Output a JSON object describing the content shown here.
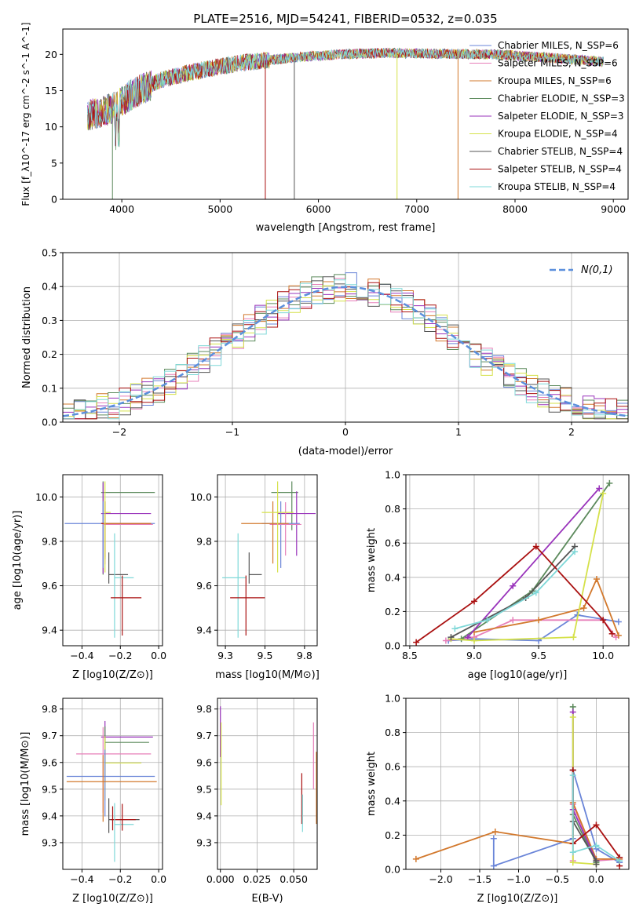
{
  "figure": {
    "title": "PLATE=2516, MJD=54241, FIBERID=0532, z=0.035",
    "series_colors": [
      "#6a85d8",
      "#e77fb9",
      "#d2782c",
      "#5c8a5c",
      "#9933bb",
      "#d5e14a",
      "#555555",
      "#aa1111",
      "#7fd8d8"
    ]
  },
  "chart_data": [
    {
      "id": "spectrum",
      "type": "line",
      "xlabel": "wavelength [Angstrom, rest frame]",
      "ylabel": "Flux [f_λ10^-17 erg cm^-2 s^-1 A^-1]",
      "xlim": [
        3400,
        9150
      ],
      "ylim": [
        0,
        23.5
      ],
      "xticks": [
        4000,
        5000,
        6000,
        7000,
        8000,
        9000
      ],
      "yticks": [
        0,
        5,
        10,
        15,
        20
      ],
      "grid": false,
      "legend_position": "top-right",
      "x_range_of_data": [
        3650,
        8900
      ],
      "continuum": [
        [
          3650,
          11.5
        ],
        [
          3900,
          12.5
        ],
        [
          4100,
          14.5
        ],
        [
          4400,
          16.5
        ],
        [
          4800,
          17.8
        ],
        [
          5200,
          18.8
        ],
        [
          5700,
          19.5
        ],
        [
          6200,
          20.0
        ],
        [
          6700,
          20.2
        ],
        [
          7200,
          20.1
        ],
        [
          7800,
          20.0
        ],
        [
          8300,
          19.6
        ],
        [
          8900,
          19.0
        ]
      ],
      "series": [
        {
          "name": "Chabrier MILES, N_SSP=6"
        },
        {
          "name": "Salpeter MILES, N_SSP=6"
        },
        {
          "name": "Kroupa MILES, N_SSP=6"
        },
        {
          "name": "Chabrier ELODIE, N_SSP=3"
        },
        {
          "name": "Salpeter ELODIE, N_SSP=3"
        },
        {
          "name": "Kroupa ELODIE, N_SSP=4"
        },
        {
          "name": "Chabrier STELIB, N_SSP=4"
        },
        {
          "name": "Salpeter STELIB, N_SSP=4"
        },
        {
          "name": "Kroupa STELIB, N_SSP=4"
        }
      ]
    },
    {
      "id": "residuals",
      "type": "step",
      "xlabel": "(data-model)/error",
      "ylabel": "Normed distribution",
      "xlim": [
        -2.5,
        2.5
      ],
      "ylim": [
        0,
        0.5
      ],
      "xticks": [
        -2,
        -1,
        0,
        1,
        2
      ],
      "yticks": [
        0.0,
        0.1,
        0.2,
        0.3,
        0.4,
        0.5
      ],
      "grid": true,
      "legend": [
        {
          "name": "N(0,1)",
          "style": "dashed",
          "color": "#5b8fdc"
        }
      ],
      "legend_position": "top-right",
      "bin_width": 0.1
    },
    {
      "id": "age-vs-z",
      "type": "errorbar",
      "xlabel": "Z [log10(Z/Z⊙)]",
      "ylabel": "age  [log10(age/yr)]",
      "xlim": [
        -0.5,
        0.02
      ],
      "ylim": [
        9.33,
        10.1
      ],
      "xticks": [
        -0.4,
        -0.2,
        0.0
      ],
      "yticks": [
        9.4,
        9.6,
        9.8,
        10.0
      ],
      "grid": true,
      "points": [
        {
          "x": -0.29,
          "y": 10.02,
          "xerr": [
            0.01,
            0.27
          ],
          "yerr": [
            0.37,
            0.05
          ],
          "c": 3
        },
        {
          "x": -0.29,
          "y": 9.925,
          "xerr": [
            0.01,
            0.25
          ],
          "yerr": [
            0.27,
            0.14
          ],
          "c": 4
        },
        {
          "x": -0.29,
          "y": 9.88,
          "xerr": [
            0.2,
            0.27
          ],
          "yerr": [
            0.2,
            0.1
          ],
          "c": 0
        },
        {
          "x": -0.28,
          "y": 9.876,
          "xerr": [
            0.01,
            0.25
          ],
          "yerr": [
            0.18,
            0.1
          ],
          "c": 1
        },
        {
          "x": -0.28,
          "y": 9.88,
          "xerr": [
            0.02,
            0.24
          ],
          "yerr": [
            0.15,
            0.1
          ],
          "c": 7
        },
        {
          "x": -0.28,
          "y": 9.88,
          "xerr": [
            0.01,
            0.24
          ],
          "yerr": [
            0.16,
            0.1
          ],
          "c": 2
        },
        {
          "x": -0.26,
          "y": 9.65,
          "xerr": [
            0.0,
            0.1
          ],
          "yerr": [
            0.04,
            0.1
          ],
          "c": 6
        },
        {
          "x": -0.23,
          "y": 9.636,
          "xerr": [
            0.0,
            0.1
          ],
          "yerr": [
            0.27,
            0.2
          ],
          "c": 8
        },
        {
          "x": -0.19,
          "y": 9.546,
          "xerr": [
            0.06,
            0.1
          ],
          "yerr": [
            0.17,
            0.1
          ],
          "c": 7
        },
        {
          "x": -0.28,
          "y": 9.93,
          "xerr": [
            0.0,
            0.03
          ],
          "yerr": [
            0.27,
            0.14
          ],
          "c": 5
        }
      ]
    },
    {
      "id": "age-vs-mass",
      "type": "errorbar",
      "xlabel": "mass [log10(M/M⊙)]",
      "xlim": [
        9.2,
        9.83
      ],
      "ylim": [
        9.33,
        10.1
      ],
      "xticks": [
        9.25,
        9.5,
        9.75
      ],
      "yticks": [
        9.4,
        9.6,
        9.8,
        10.0
      ],
      "grid": true,
      "points": [
        {
          "x": 9.67,
          "y": 10.02,
          "xerr": [
            0.13,
            0.04
          ],
          "yerr": [
            0.17,
            0.05
          ],
          "c": 3
        },
        {
          "x": 9.7,
          "y": 9.925,
          "xerr": [
            0.12,
            0.12
          ],
          "yerr": [
            0.19,
            0.1
          ],
          "c": 4
        },
        {
          "x": 9.6,
          "y": 9.88,
          "xerr": [
            0.12,
            0.12
          ],
          "yerr": [
            0.2,
            0.1
          ],
          "c": 0
        },
        {
          "x": 9.63,
          "y": 9.876,
          "xerr": [
            0.1,
            0.1
          ],
          "yerr": [
            0.14,
            0.1
          ],
          "c": 1
        },
        {
          "x": 9.55,
          "y": 9.88,
          "xerr": [
            0.2,
            0.1
          ],
          "yerr": [
            0.18,
            0.1
          ],
          "c": 2
        },
        {
          "x": 9.4,
          "y": 9.65,
          "xerr": [
            0.0,
            0.08
          ],
          "yerr": [
            0.04,
            0.1
          ],
          "c": 6
        },
        {
          "x": 9.33,
          "y": 9.636,
          "xerr": [
            0.1,
            0.05
          ],
          "yerr": [
            0.27,
            0.2
          ],
          "c": 8
        },
        {
          "x": 9.38,
          "y": 9.546,
          "xerr": [
            0.1,
            0.12
          ],
          "yerr": [
            0.17,
            0.1
          ],
          "c": 7
        },
        {
          "x": 9.58,
          "y": 9.93,
          "xerr": [
            0.1,
            0.1
          ],
          "yerr": [
            0.27,
            0.14
          ],
          "c": 5
        }
      ]
    },
    {
      "id": "weight-vs-age",
      "type": "line",
      "xlabel": "age  [log10(age/yr)]",
      "ylabel": "mass weight",
      "xlim": [
        8.47,
        10.2
      ],
      "ylim": [
        0,
        1
      ],
      "xticks": [
        8.5,
        9.0,
        9.5,
        10.0
      ],
      "yticks": [
        0.0,
        0.2,
        0.4,
        0.6,
        0.8,
        1.0
      ],
      "grid": true,
      "series": [
        {
          "c": 0,
          "x": [
            8.8,
            9.0,
            9.5,
            9.8,
            10.12
          ],
          "y": [
            0.03,
            0.04,
            0.03,
            0.18,
            0.14
          ]
        },
        {
          "c": 1,
          "x": [
            8.78,
            9.0,
            9.3,
            10.0,
            10.1
          ],
          "y": [
            0.03,
            0.05,
            0.15,
            0.15,
            0.05
          ]
        },
        {
          "c": 2,
          "x": [
            9.0,
            9.5,
            9.85,
            9.95,
            10.12
          ],
          "y": [
            0.08,
            0.15,
            0.22,
            0.39,
            0.06
          ]
        },
        {
          "c": 3,
          "x": [
            8.9,
            9.45,
            10.05
          ],
          "y": [
            0.04,
            0.32,
            0.95
          ]
        },
        {
          "c": 4,
          "x": [
            8.95,
            9.3,
            9.97
          ],
          "y": [
            0.05,
            0.35,
            0.92
          ]
        },
        {
          "c": 5,
          "x": [
            8.82,
            9.0,
            9.77,
            10.0
          ],
          "y": [
            0.04,
            0.03,
            0.05,
            0.89
          ]
        },
        {
          "c": 6,
          "x": [
            8.82,
            9.4,
            9.78
          ],
          "y": [
            0.05,
            0.28,
            0.58
          ]
        },
        {
          "c": 7,
          "x": [
            8.55,
            9.0,
            9.48,
            10.0,
            10.07
          ],
          "y": [
            0.02,
            0.26,
            0.58,
            0.15,
            0.07
          ]
        },
        {
          "c": 8,
          "x": [
            8.85,
            9.1,
            9.48,
            9.78
          ],
          "y": [
            0.1,
            0.15,
            0.31,
            0.55
          ]
        }
      ]
    },
    {
      "id": "mass-vs-z",
      "type": "errorbar",
      "xlabel": "Z [log10(Z/Z⊙)]",
      "ylabel": "mass [log10(M/M⊙)]",
      "xlim": [
        -0.5,
        0.02
      ],
      "ylim": [
        9.2,
        9.84
      ],
      "xticks": [
        -0.4,
        -0.2,
        0.0
      ],
      "yticks": [
        9.3,
        9.4,
        9.5,
        9.6,
        9.7,
        9.8
      ],
      "grid": true,
      "points": [
        {
          "x": -0.28,
          "y": 9.695,
          "xerr": [
            0.02,
            0.25
          ],
          "yerr": [
            0.1,
            0.06
          ],
          "c": 4
        },
        {
          "x": -0.28,
          "y": 9.675,
          "xerr": [
            0.0,
            0.23
          ],
          "yerr": [
            0.15,
            0.06
          ],
          "c": 3
        },
        {
          "x": -0.29,
          "y": 9.632,
          "xerr": [
            0.14,
            0.25
          ],
          "yerr": [
            0.22,
            0.1
          ],
          "c": 1
        },
        {
          "x": -0.28,
          "y": 9.598,
          "xerr": [
            0.0,
            0.19
          ],
          "yerr": [
            0.14,
            0.1
          ],
          "c": 5
        },
        {
          "x": -0.28,
          "y": 9.548,
          "xerr": [
            0.2,
            0.26
          ],
          "yerr": [
            0.15,
            0.1
          ],
          "c": 0
        },
        {
          "x": -0.29,
          "y": 9.528,
          "xerr": [
            0.19,
            0.28
          ],
          "yerr": [
            0.15,
            0.1
          ],
          "c": 2
        },
        {
          "x": -0.26,
          "y": 9.386,
          "xerr": [
            0.0,
            0.16
          ],
          "yerr": [
            0.05,
            0.08
          ],
          "c": 6
        },
        {
          "x": -0.24,
          "y": 9.386,
          "xerr": [
            0.01,
            0.12
          ],
          "yerr": [
            0.04,
            0.05
          ],
          "c": 7
        },
        {
          "x": -0.23,
          "y": 9.368,
          "xerr": [
            0.0,
            0.1
          ],
          "yerr": [
            0.14,
            0.08
          ],
          "c": 8
        },
        {
          "x": -0.19,
          "y": 9.385,
          "xerr": [
            0.0,
            0.0
          ],
          "yerr": [
            0.04,
            0.06
          ],
          "c": 7
        }
      ]
    },
    {
      "id": "mass-vs-ebv",
      "type": "errorbar",
      "xlabel": "E(B-V)",
      "xlim": [
        -0.002,
        0.066
      ],
      "ylim": [
        9.2,
        9.84
      ],
      "xticks": [
        0.0,
        0.025,
        0.05
      ],
      "xticklabels": [
        "0.000",
        "0.025",
        "0.050"
      ],
      "yticks": [
        9.3,
        9.4,
        9.5,
        9.6,
        9.7,
        9.8
      ],
      "grid": true,
      "points": [
        {
          "x": 0.0,
          "y": 9.72,
          "yerr": [
            0.1,
            0.09
          ],
          "c": 4
        },
        {
          "x": 0.0005,
          "y": 9.62,
          "yerr": [
            0.18,
            0.13
          ],
          "c": 5
        },
        {
          "x": 0.0555,
          "y": 9.47,
          "yerr": [
            0.1,
            0.09
          ],
          "c": 7
        },
        {
          "x": 0.056,
          "y": 9.4,
          "yerr": [
            0.06,
            0.08
          ],
          "c": 8
        },
        {
          "x": 0.0635,
          "y": 9.62,
          "yerr": [
            0.12,
            0.13
          ],
          "c": 1
        },
        {
          "x": 0.0655,
          "y": 9.53,
          "yerr": [
            0.16,
            0.11
          ],
          "c": 2
        }
      ]
    },
    {
      "id": "weight-vs-z",
      "type": "line",
      "xlabel": "Z [log10(Z/Z⊙)]",
      "ylabel": "mass weight",
      "xlim": [
        -2.45,
        0.42
      ],
      "ylim": [
        0,
        1
      ],
      "xticks": [
        -2.0,
        -1.5,
        -1.0,
        -0.5,
        0.0
      ],
      "yticks": [
        0.0,
        0.2,
        0.4,
        0.6,
        0.8,
        1.0
      ],
      "grid": true,
      "series": [
        {
          "c": 0,
          "x": [
            -1.32,
            -1.32,
            -0.3,
            -0.3,
            0.0,
            0.3
          ],
          "y": [
            0.18,
            0.02,
            0.18,
            0.58,
            0.12,
            0.04
          ]
        },
        {
          "c": 1,
          "x": [
            -0.3,
            -0.3,
            0.0,
            0.3
          ],
          "y": [
            0.05,
            0.38,
            0.05,
            0.06
          ]
        },
        {
          "c": 2,
          "x": [
            -2.32,
            -1.3,
            -0.3,
            -0.3,
            0.0,
            0.3
          ],
          "y": [
            0.06,
            0.22,
            0.15,
            0.39,
            0.06,
            0.06
          ]
        },
        {
          "c": 3,
          "x": [
            -0.3,
            -0.3,
            0.0
          ],
          "y": [
            0.95,
            0.32,
            0.04
          ]
        },
        {
          "c": 4,
          "x": [
            -0.3,
            -0.3,
            0.0
          ],
          "y": [
            0.92,
            0.35,
            0.05
          ]
        },
        {
          "c": 5,
          "x": [
            -0.3,
            -0.3,
            0.0
          ],
          "y": [
            0.89,
            0.04,
            0.03
          ]
        },
        {
          "c": 6,
          "x": [
            -0.3,
            -0.3,
            0.0,
            0.0
          ],
          "y": [
            0.58,
            0.28,
            0.05,
            0.03
          ]
        },
        {
          "c": 7,
          "x": [
            -0.3,
            -0.3,
            0.0,
            0.3,
            0.3
          ],
          "y": [
            0.58,
            0.15,
            0.26,
            0.07,
            0.02
          ]
        },
        {
          "c": 8,
          "x": [
            -0.3,
            -0.3,
            0.0,
            0.3
          ],
          "y": [
            0.55,
            0.1,
            0.14,
            0.05
          ]
        }
      ]
    }
  ]
}
